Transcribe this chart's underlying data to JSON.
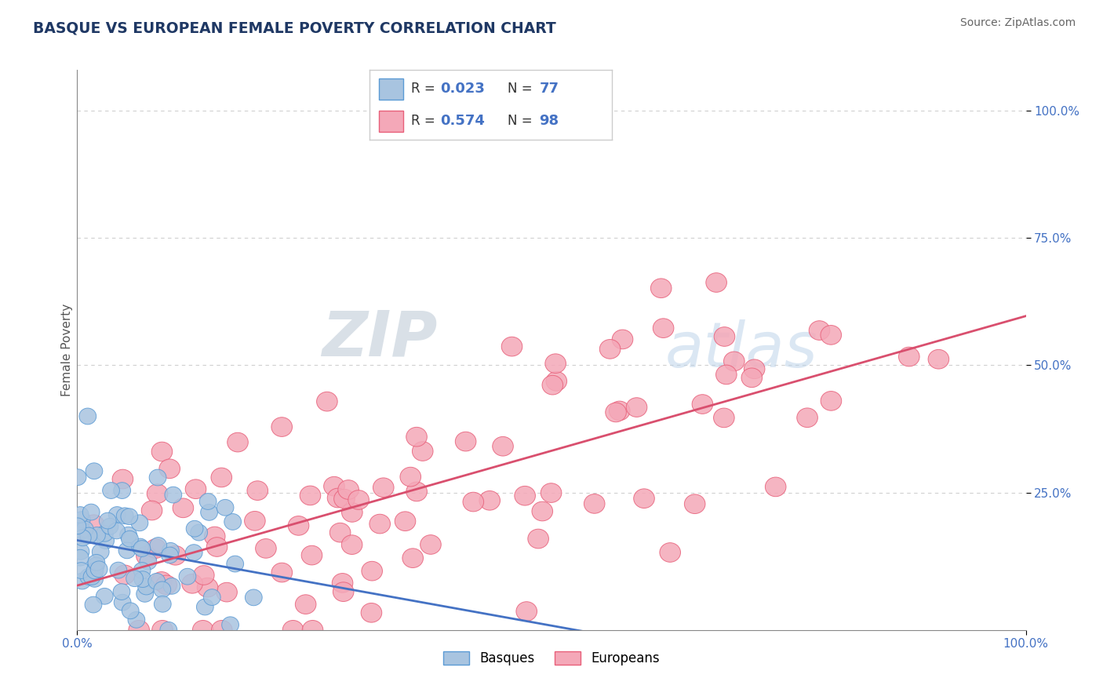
{
  "title": "BASQUE VS EUROPEAN FEMALE POVERTY CORRELATION CHART",
  "source_text": "Source: ZipAtlas.com",
  "ylabel": "Female Poverty",
  "xlim": [
    0,
    1
  ],
  "ylim": [
    -0.02,
    1.08
  ],
  "x_tick_labels": [
    "0.0%",
    "100.0%"
  ],
  "y_tick_labels": [
    "25.0%",
    "50.0%",
    "75.0%",
    "100.0%"
  ],
  "y_tick_positions": [
    0.25,
    0.5,
    0.75,
    1.0
  ],
  "legend_R_basque": "0.023",
  "legend_N_basque": "77",
  "legend_R_european": "0.574",
  "legend_N_european": "98",
  "basque_color": "#a8c4e0",
  "european_color": "#f4a8b8",
  "basque_edge_color": "#5b9bd5",
  "european_edge_color": "#e8607a",
  "basque_line_color": "#4472c4",
  "european_line_color": "#d94f6e",
  "axis_label_color": "#4472c4",
  "title_color": "#1f3864",
  "source_color": "#666666",
  "grid_color": "#d0d0d0",
  "background_color": "#ffffff",
  "watermark_zip_color": "#c8d4e0",
  "watermark_atlas_color": "#c8d8f0",
  "basque_seed": 42,
  "european_seed": 123,
  "basque_n": 77,
  "european_n": 98
}
